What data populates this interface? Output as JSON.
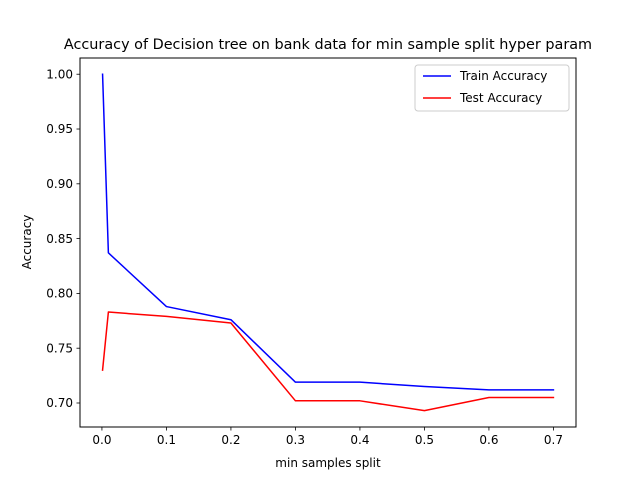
{
  "chart_data": {
    "type": "line",
    "title": "Accuracy of Decision tree on bank data for min sample split hyper param",
    "xlabel": "min samples split",
    "ylabel": "Accuracy",
    "x": [
      0.001,
      0.01,
      0.1,
      0.2,
      0.3,
      0.4,
      0.5,
      0.6,
      0.7
    ],
    "xlim": [
      -0.034,
      0.735
    ],
    "ylim": [
      0.6781,
      1.0148
    ],
    "xticks": [
      0.0,
      0.1,
      0.2,
      0.3,
      0.4,
      0.5,
      0.6,
      0.7
    ],
    "xtick_labels": [
      "0.0",
      "0.1",
      "0.2",
      "0.3",
      "0.4",
      "0.5",
      "0.6",
      "0.7"
    ],
    "yticks": [
      0.7,
      0.75,
      0.8,
      0.85,
      0.9,
      0.95,
      1.0
    ],
    "ytick_labels": [
      "0.70",
      "0.75",
      "0.80",
      "0.85",
      "0.90",
      "0.95",
      "1.00"
    ],
    "grid": false,
    "legend_position": "top-right",
    "series": [
      {
        "name": "Train Accuracy",
        "color": "#0000ff",
        "values": [
          1.0,
          0.837,
          0.788,
          0.776,
          0.719,
          0.719,
          0.715,
          0.712,
          0.712
        ]
      },
      {
        "name": "Test Accuracy",
        "color": "#ff0000",
        "values": [
          0.73,
          0.783,
          0.779,
          0.773,
          0.702,
          0.702,
          0.693,
          0.705,
          0.705
        ]
      }
    ]
  }
}
